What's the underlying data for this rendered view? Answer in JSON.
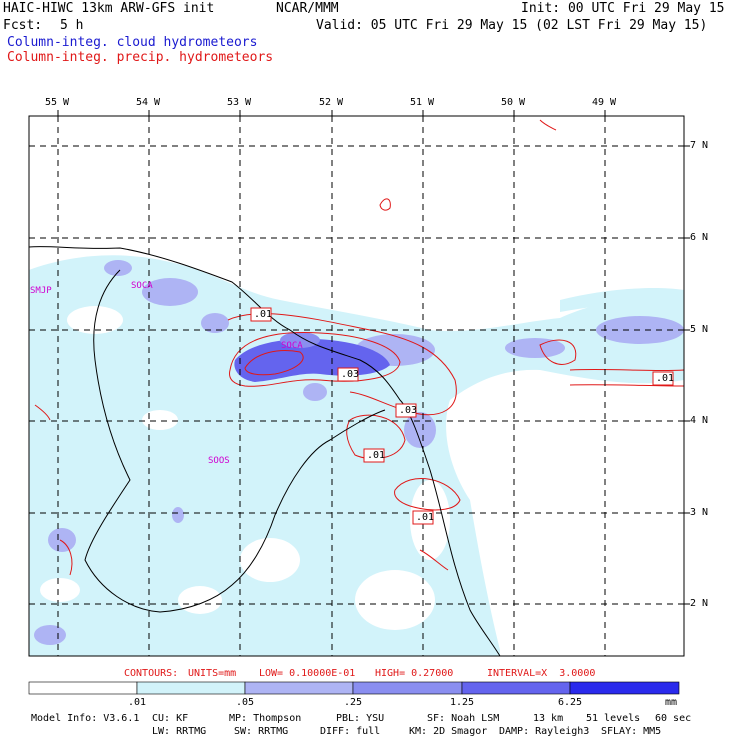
{
  "header": {
    "model_title": "HAIC-HIWC 13km ARW-GFS init",
    "org": "NCAR/MMM",
    "init": "Init: 00 UTC Fri 29 May 15",
    "fcst_label": "Fcst:",
    "fcst_value": "5 h",
    "valid": "Valid: 05 UTC Fri 29 May 15 (02 LST Fri 29 May 15)",
    "field_cloud": "Column-integ. cloud hydrometeors",
    "field_precip": "Column-integ. precip. hydrometeors"
  },
  "map": {
    "lon_labels": [
      "55 W",
      "54 W",
      "53 W",
      "52 W",
      "51 W",
      "50 W",
      "49 W"
    ],
    "lat_labels": [
      "7 N",
      "6 N",
      "5 N",
      "4 N",
      "3 N",
      "2 N"
    ],
    "place_labels": [
      "SMJP",
      "SOCA",
      "SOCA",
      "SOOS"
    ],
    "contour_labels": [
      ".01",
      ".03",
      ".03",
      ".01",
      ".01",
      ".01"
    ]
  },
  "contour_info": {
    "contours": "CONTOURS:",
    "units": "UNITS=mm",
    "low": "LOW= 0.10000E-01",
    "high": "HIGH= 0.27000",
    "interval": "INTERVAL=X  3.0000"
  },
  "colorbar": {
    "ticks": [
      ".01",
      ".05",
      ".25",
      "1.25",
      "6.25"
    ],
    "unit": "mm",
    "colors": [
      "#ffffff",
      "#d2f3fa",
      "#aeb4f4",
      "#8a8ef0",
      "#6464ee",
      "#2a2aec"
    ]
  },
  "footer": {
    "line1": [
      "Model Info: V3.6.1",
      "CU: KF",
      "MP: Thompson",
      "PBL: YSU",
      "SF: Noah LSM",
      "13 km",
      "51 levels",
      "60 sec"
    ],
    "line2": [
      "LW: RRTMG",
      "SW: RRTMG",
      "DIFF: full",
      "KM: 2D Smagor",
      "DAMP: Rayleigh3",
      "SFLAY: MM5"
    ]
  }
}
